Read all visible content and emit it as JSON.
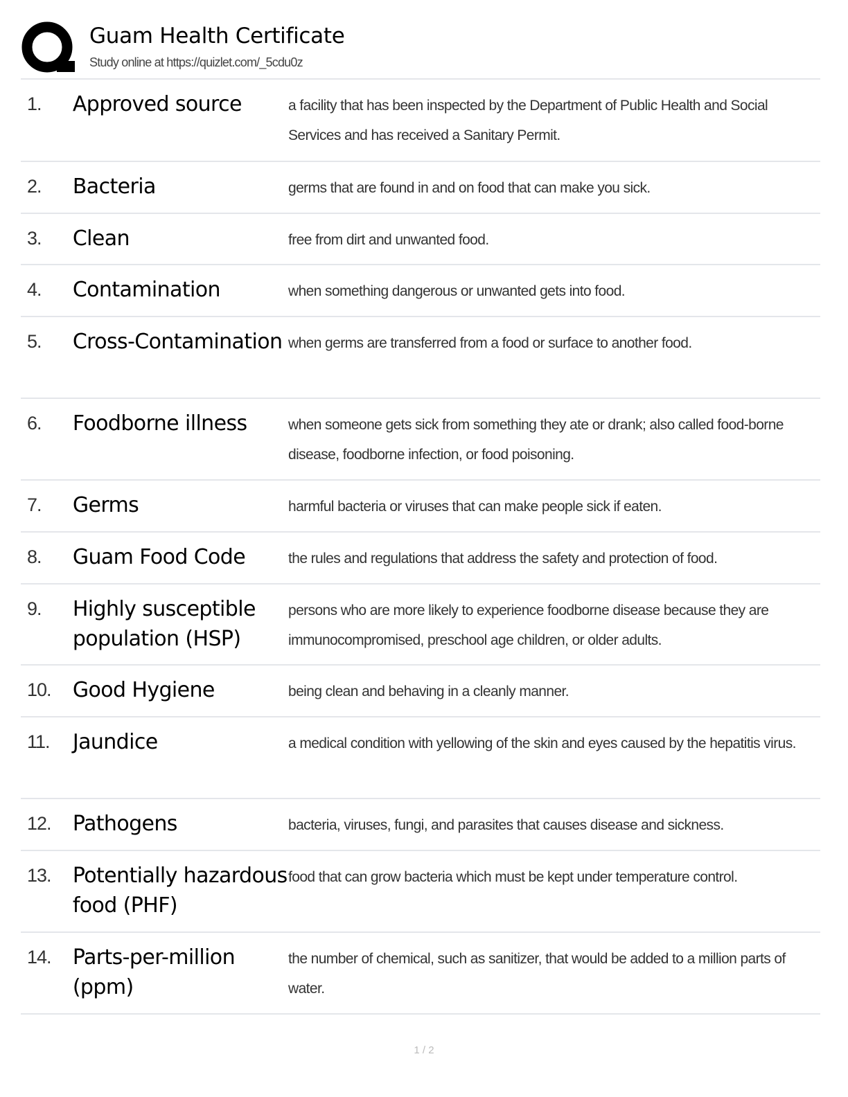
{
  "header": {
    "title": "Guam Health Certificate",
    "subtitle": "Study online at https://quizlet.com/_5cdu0z",
    "logo": "quizlet-q-logo"
  },
  "terms": [
    {
      "num": "1.",
      "term": "Approved source",
      "def": "a facility that has been inspected by the Department of Public Health and Social Services and has received a Sanitary Permit."
    },
    {
      "num": "2.",
      "term": "Bacteria",
      "def": "germs that are found in and on food that can make you sick."
    },
    {
      "num": "3.",
      "term": "Clean",
      "def": "free from dirt and unwanted food."
    },
    {
      "num": "4.",
      "term": "Contamination",
      "def": "when something dangerous or unwanted gets into food."
    },
    {
      "num": "5.",
      "term": "Cross-Contamina­tion",
      "def": "when germs are transferred from a food or surface to another food."
    },
    {
      "num": "6.",
      "term": "Foodborne illness",
      "def": "when someone gets sick from something they ate or drank; also called food-borne disease, foodborne infection, or food poisoning."
    },
    {
      "num": "7.",
      "term": "Germs",
      "def": "harmful bacteria or viruses that can make people sick if eaten."
    },
    {
      "num": "8.",
      "term": "Guam Food Code",
      "def": "the rules and regulations that address the safety and protection of food."
    },
    {
      "num": "9.",
      "term": "Highly susceptible population (HSP)",
      "def": "persons who are more likely to experience foodborne disease because they are immunocompromised, preschool age children, or older adults."
    },
    {
      "num": "10.",
      "term": "Good Hygiene",
      "def": "being clean and behaving in a cleanly manner."
    },
    {
      "num": "11.",
      "term": "Jaundice",
      "def": "a medical condition with yellowing of the skin and eyes caused by the hepatitis virus."
    },
    {
      "num": "12.",
      "term": "Pathogens",
      "def": "bacteria, viruses, fungi, and parasites that causes disease and sickness."
    },
    {
      "num": "13.",
      "term": "Potentially haz­ardous food (PHF)",
      "def": "food that can grow bacteria which must be kept under temperature control."
    },
    {
      "num": "14.",
      "term": "Parts-per-million (ppm)",
      "def": "the number of chemical, such as sanitizer, that would be added to a million parts of water."
    }
  ],
  "footer": {
    "page": "1 / 2"
  }
}
